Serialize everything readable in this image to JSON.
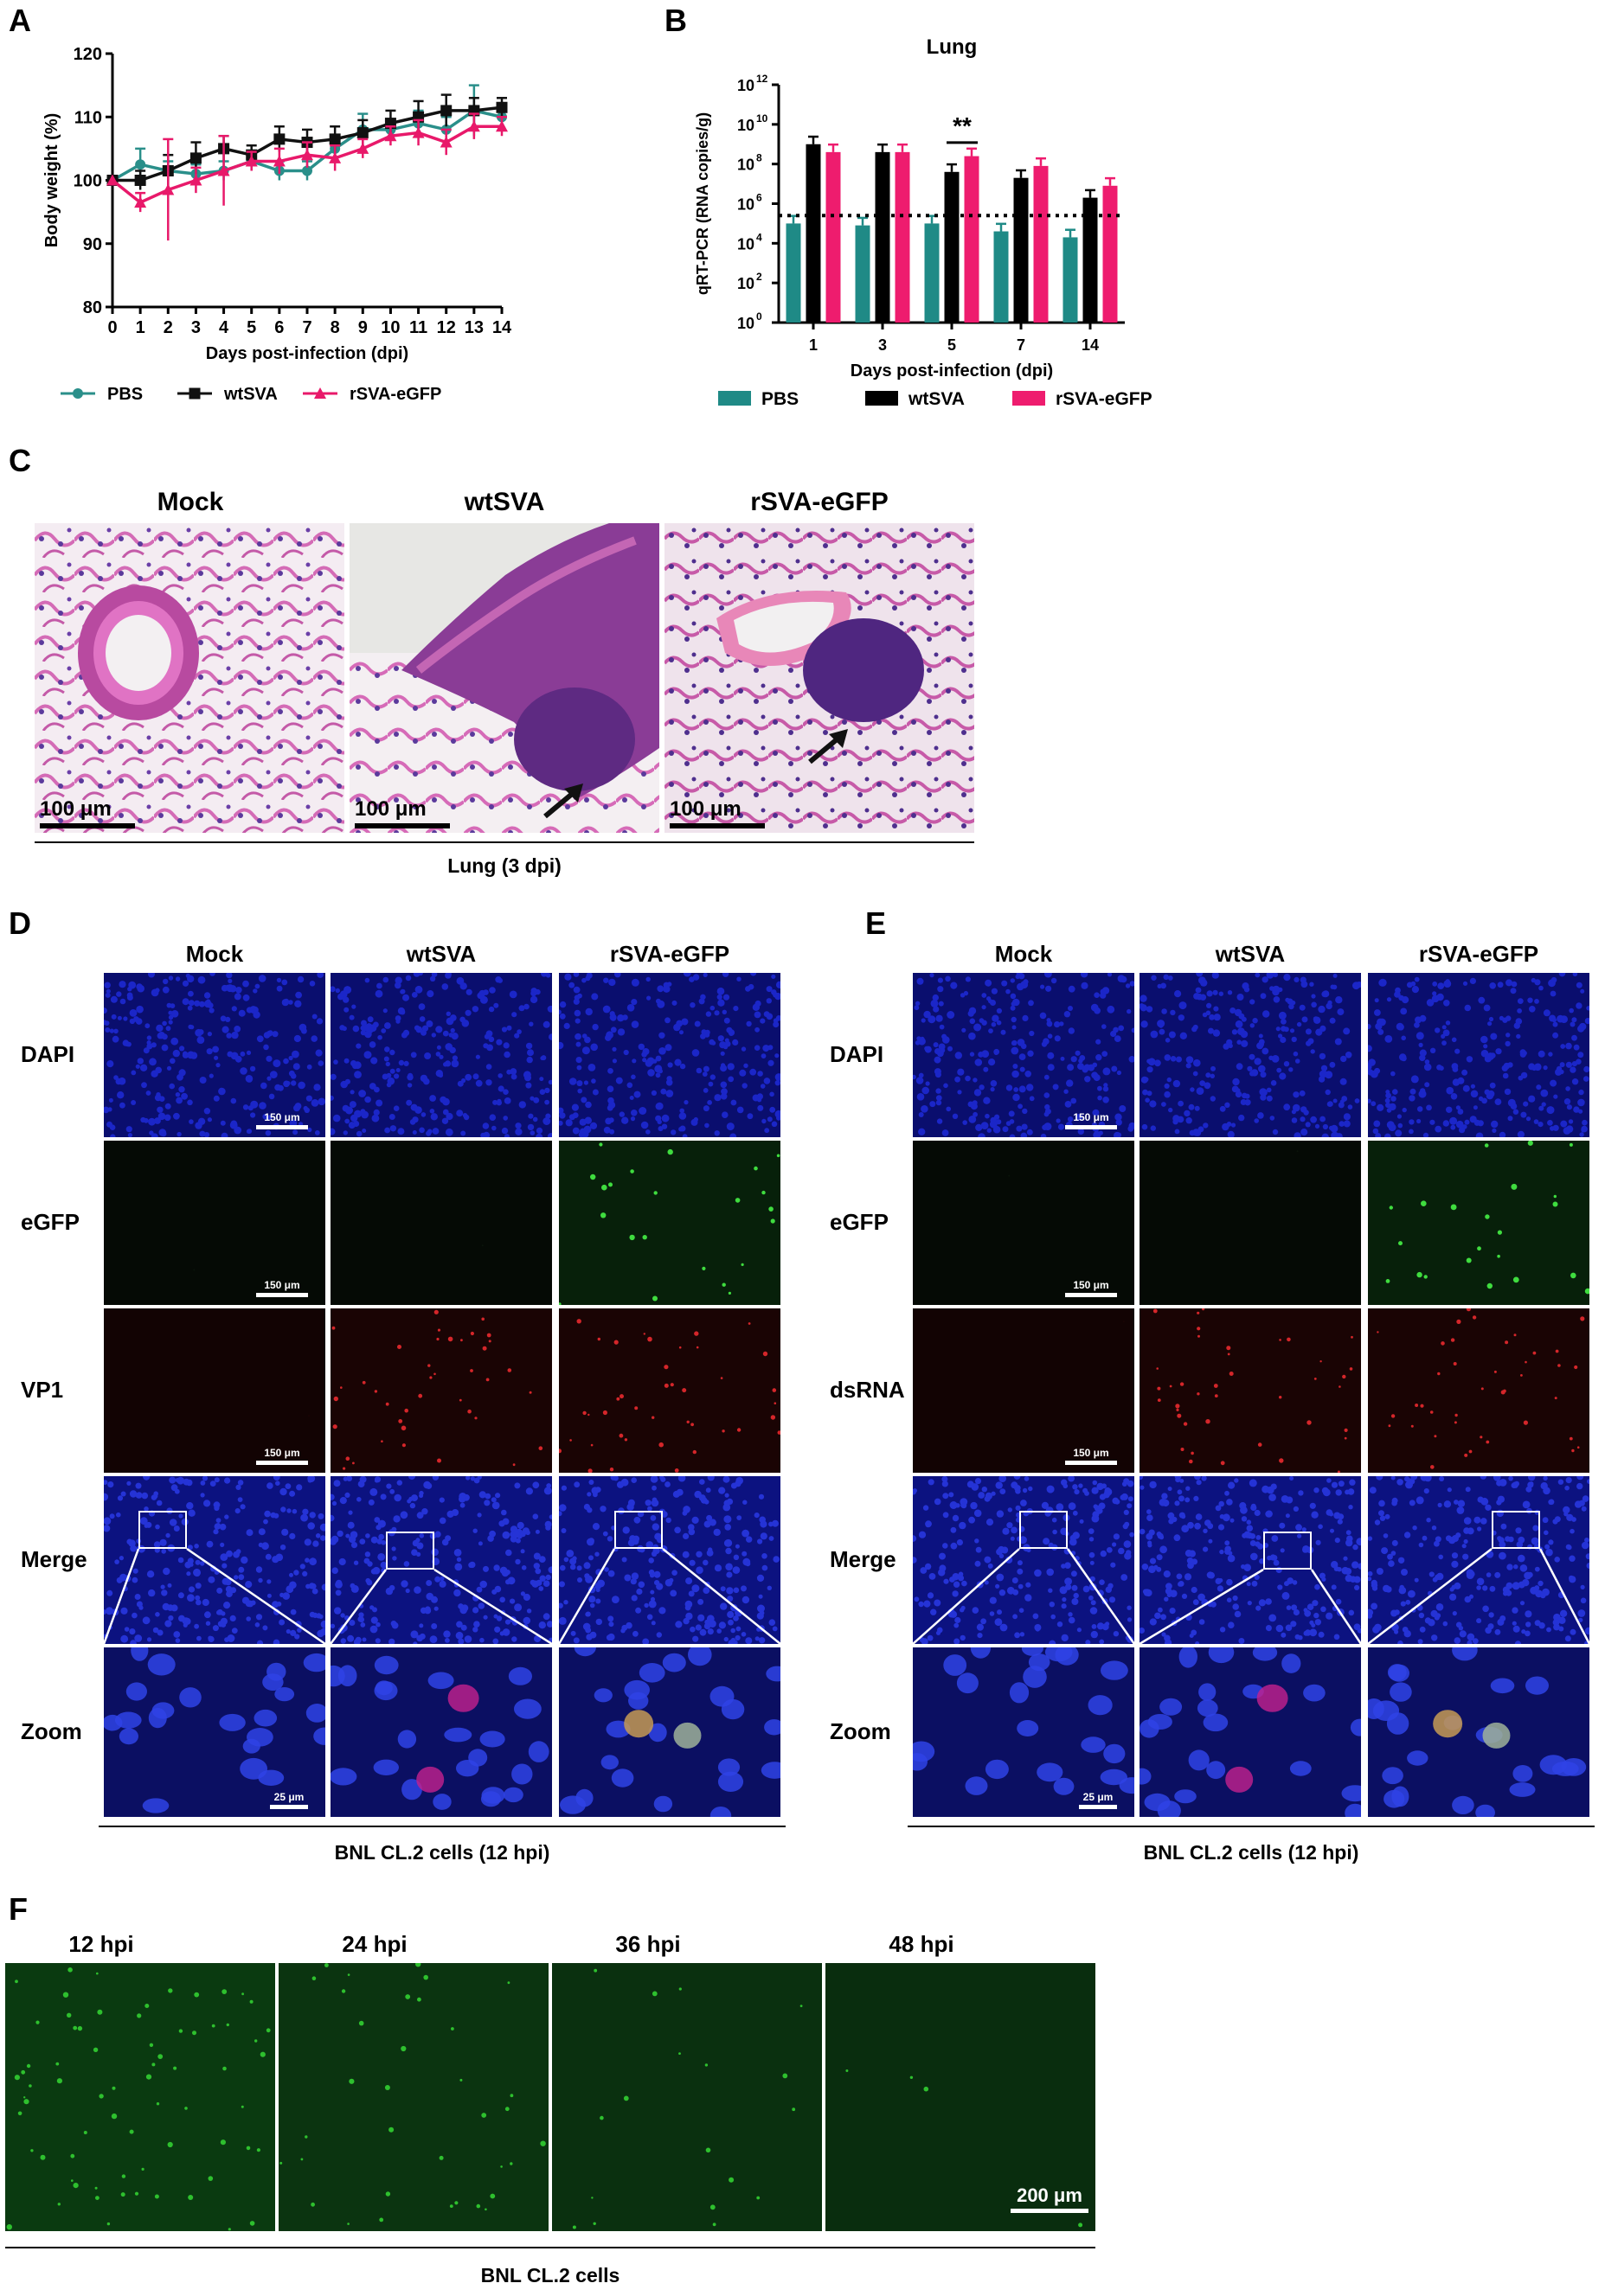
{
  "panel_labels": {
    "a": "A",
    "b": "B",
    "c": "C",
    "d": "D",
    "e": "E",
    "f": "F"
  },
  "chart_data": [
    {
      "type": "line",
      "panel": "A",
      "title": "",
      "xlabel": "Days post-infection (dpi)",
      "ylabel": "Body weight (%)",
      "ylim": [
        80,
        120
      ],
      "yticks": [
        80,
        90,
        100,
        110,
        120
      ],
      "x": [
        0,
        1,
        2,
        3,
        4,
        5,
        6,
        7,
        8,
        9,
        10,
        11,
        12,
        13,
        14
      ],
      "series": [
        {
          "name": "PBS",
          "color": "#2a8f8a",
          "marker": "circle",
          "values": [
            100,
            102.5,
            101.5,
            101,
            101.5,
            103,
            101.5,
            101.5,
            105,
            108,
            108,
            109,
            108,
            111,
            110
          ],
          "errors": [
            0,
            2.5,
            1.5,
            1.5,
            1.5,
            1.5,
            1.5,
            1.5,
            1.5,
            2.5,
            1.5,
            2,
            2,
            4,
            2
          ]
        },
        {
          "name": "wtSVA",
          "color": "#111111",
          "marker": "square",
          "values": [
            100,
            100,
            101.5,
            103.5,
            105,
            104,
            106.5,
            106,
            106.5,
            107.5,
            109,
            110,
            111,
            111,
            111.5
          ],
          "errors": [
            0,
            1.5,
            2.5,
            2.5,
            2,
            1.5,
            2,
            2,
            2,
            2,
            2,
            2.5,
            2.5,
            2,
            1.5
          ]
        },
        {
          "name": "rSVA-eGFP",
          "color": "#e8196a",
          "marker": "triangle",
          "values": [
            100,
            96.5,
            98.5,
            100,
            101.5,
            103,
            103,
            104,
            103.5,
            105,
            107,
            107.5,
            106,
            108.5,
            108.5
          ],
          "errors": [
            0,
            1.5,
            8,
            2,
            5.5,
            1.5,
            2,
            2,
            2,
            1.5,
            1.5,
            2,
            2,
            2,
            1.5
          ]
        }
      ],
      "legend_placement": "bottom"
    },
    {
      "type": "bar",
      "panel": "B",
      "title": "Lung",
      "xlabel": "Days post-infection (dpi)",
      "ylabel": "qRT-PCR (RNA copies/g)",
      "yscale": "log",
      "ylim": [
        1,
        1000000000000
      ],
      "ytick_exponents": [
        0,
        2,
        4,
        6,
        8,
        10,
        12
      ],
      "categories": [
        "1",
        "3",
        "5",
        "7",
        "14"
      ],
      "detection_limit": 250000,
      "annotation": {
        "text": "**",
        "category": "5"
      },
      "series": [
        {
          "name": "PBS",
          "color": "#1f8a86",
          "values": [
            100000,
            80000,
            100000,
            40000,
            20000
          ]
        },
        {
          "name": "wtSVA",
          "color": "#000000",
          "values": [
            1000000000,
            400000000,
            40000000,
            20000000,
            2000000
          ]
        },
        {
          "name": "rSVA-eGFP",
          "color": "#ee1c6e",
          "values": [
            400000000,
            400000000,
            250000000,
            80000000,
            8000000
          ]
        }
      ],
      "legend_placement": "bottom"
    }
  ],
  "panel_c": {
    "columns": [
      "Mock",
      "wtSVA",
      "rSVA-eGFP"
    ],
    "scale": "100 μm",
    "caption": "Lung (3 dpi)"
  },
  "panel_d": {
    "columns": [
      "Mock",
      "wtSVA",
      "rSVA-eGFP"
    ],
    "rows": [
      "DAPI",
      "eGFP",
      "VP1",
      "Merge",
      "Zoom"
    ],
    "scale": "150 μm",
    "zoom_scale": "25 μm",
    "caption": "BNL CL.2 cells (12 hpi)"
  },
  "panel_e": {
    "columns": [
      "Mock",
      "wtSVA",
      "rSVA-eGFP"
    ],
    "rows": [
      "DAPI",
      "eGFP",
      "dsRNA",
      "Merge",
      "Zoom"
    ],
    "scale": "150 μm",
    "zoom_scale": "25 μm",
    "caption": "BNL CL.2 cells (12 hpi)"
  },
  "panel_f": {
    "columns": [
      "12 hpi",
      "24 hpi",
      "36 hpi",
      "48 hpi"
    ],
    "scale": "200 μm",
    "caption": "BNL CL.2 cells"
  }
}
